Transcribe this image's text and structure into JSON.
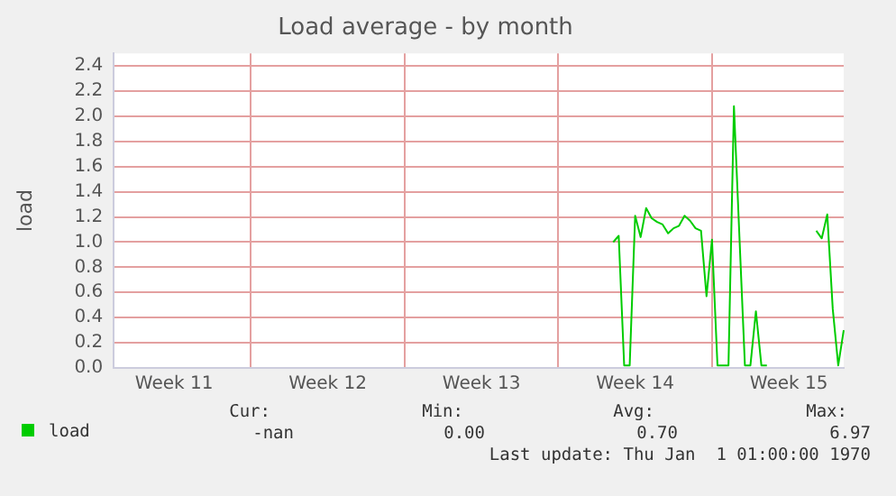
{
  "chart_data": {
    "type": "line",
    "title": "Load average - by month",
    "ylabel": "load",
    "categories": [
      null,
      null,
      null,
      null,
      null,
      null,
      null,
      null,
      null,
      null,
      null,
      "Week 11",
      null,
      null,
      null,
      null,
      null,
      null,
      null,
      null,
      null,
      null,
      null,
      null,
      null,
      null,
      null,
      null,
      null,
      null,
      null,
      null,
      null,
      null,
      null,
      null,
      null,
      null,
      null,
      "Week 12",
      null,
      null,
      null,
      null,
      null,
      null,
      null,
      null,
      null,
      null,
      null,
      null,
      null,
      null,
      null,
      null,
      null,
      null,
      null,
      null,
      null,
      null,
      null,
      null,
      null,
      null,
      null,
      "Week 13",
      null,
      null,
      null,
      null,
      null,
      null,
      null,
      null,
      null,
      null,
      null,
      null,
      null,
      null,
      null,
      null,
      null,
      null,
      null,
      null,
      null,
      null,
      null,
      null,
      null,
      null,
      null,
      "Week 14",
      null,
      null,
      null,
      null,
      null,
      null,
      null,
      null,
      null,
      null,
      null,
      null,
      null,
      null,
      null,
      null,
      null,
      null,
      null,
      null,
      null,
      null,
      null,
      null,
      null,
      null,
      null,
      "Week 15",
      null,
      null,
      null,
      null,
      null,
      null,
      null,
      null,
      null,
      null
    ],
    "ylim": [
      0,
      2.5
    ],
    "yticks": [
      {
        "value": 0,
        "label": "0.0"
      },
      {
        "value": 0.2,
        "label": "0.2"
      },
      {
        "value": 0.4,
        "label": "0.4"
      },
      {
        "value": 0.6,
        "label": "0.6"
      },
      {
        "value": 0.8,
        "label": "0.8"
      },
      {
        "value": 1.0,
        "label": "1.0"
      },
      {
        "value": 1.2,
        "label": "1.2"
      },
      {
        "value": 1.4,
        "label": "1.4"
      },
      {
        "value": 1.6,
        "label": "1.6"
      },
      {
        "value": 1.8,
        "label": "1.8"
      },
      {
        "value": 2.0,
        "label": "2.0"
      },
      {
        "value": 2.2,
        "label": "2.2"
      },
      {
        "value": 2.4,
        "label": "2.4"
      }
    ],
    "grid": true,
    "legend": "bottom left",
    "marker": "none",
    "line_style": "solid",
    "series": [
      {
        "name": "load",
        "color": "#00cc00",
        "values": [
          null,
          null,
          null,
          null,
          null,
          null,
          null,
          null,
          null,
          null,
          null,
          null,
          null,
          null,
          null,
          null,
          null,
          null,
          null,
          null,
          null,
          null,
          null,
          null,
          null,
          null,
          null,
          null,
          null,
          null,
          null,
          null,
          null,
          null,
          null,
          null,
          null,
          null,
          null,
          null,
          null,
          null,
          null,
          null,
          null,
          null,
          null,
          null,
          null,
          null,
          null,
          null,
          null,
          null,
          null,
          null,
          null,
          null,
          null,
          null,
          null,
          null,
          null,
          null,
          null,
          null,
          null,
          null,
          null,
          null,
          null,
          null,
          null,
          null,
          null,
          null,
          null,
          null,
          null,
          null,
          null,
          null,
          null,
          null,
          null,
          null,
          null,
          null,
          null,
          null,
          null,
          1.0,
          1.05,
          0.02,
          0.02,
          1.21,
          1.04,
          1.27,
          1.19,
          1.16,
          1.14,
          1.07,
          1.11,
          1.13,
          1.21,
          1.17,
          1.11,
          1.09,
          0.57,
          1.02,
          0.02,
          0.02,
          0.02,
          2.08,
          1.04,
          0.02,
          0.02,
          0.45,
          0.02,
          0.02,
          null,
          null,
          null,
          null,
          null,
          null,
          null,
          null,
          1.09,
          1.03,
          1.22,
          0.47,
          0.02,
          0.3
        ]
      }
    ],
    "annotations": [
      "Cur:",
      "Min:",
      "Avg:",
      "Max:",
      "-nan",
      "0.00",
      "0.70",
      "6.97",
      "Last update: Thu Jan  1 01:00:00 1970"
    ]
  }
}
